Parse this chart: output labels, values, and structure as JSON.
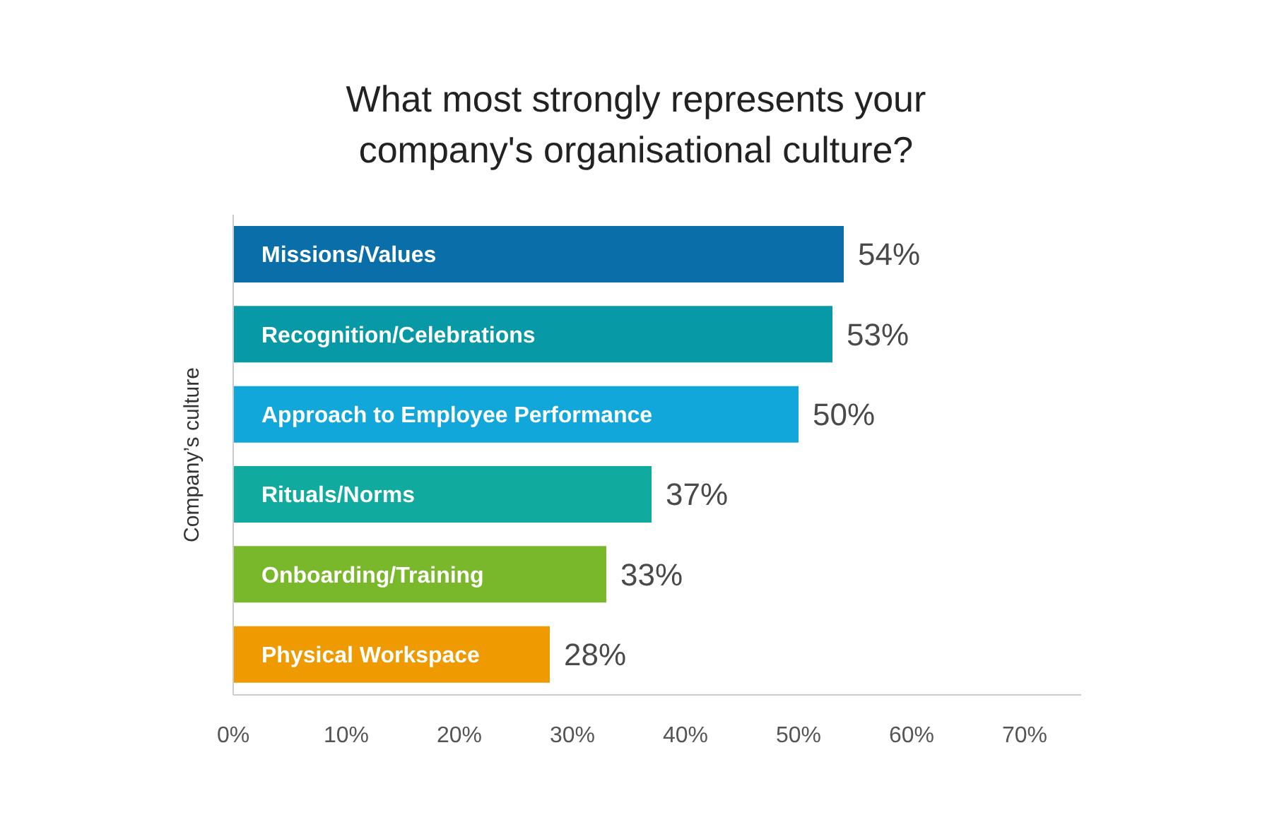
{
  "chart_data": {
    "type": "bar",
    "orientation": "horizontal",
    "title": "What most strongly represents your company's organisational culture?",
    "ylabel": "Company’s culture",
    "categories": [
      "Missions/Values",
      "Recognition/Celebrations",
      "Approach to Employee Performance",
      "Rituals/Norms",
      "Onboarding/Training",
      "Physical Workspace"
    ],
    "values": [
      54,
      53,
      50,
      37,
      33,
      28
    ],
    "colors": [
      "#0a6fa8",
      "#0899a6",
      "#11a7db",
      "#10ab9e",
      "#78b82a",
      "#ef9a00"
    ],
    "value_labels": [
      "54%",
      "53%",
      "50%",
      "37%",
      "33%",
      "28%"
    ],
    "xlim": [
      0,
      75
    ],
    "xticks": [
      {
        "value": 0,
        "label": "0%"
      },
      {
        "value": 10,
        "label": "10%"
      },
      {
        "value": 20,
        "label": "20%"
      },
      {
        "value": 30,
        "label": "30%"
      },
      {
        "value": 40,
        "label": "40%"
      },
      {
        "value": 50,
        "label": "50%"
      },
      {
        "value": 60,
        "label": "60%"
      },
      {
        "value": 70,
        "label": "70%"
      }
    ],
    "grid": false,
    "legend": false
  }
}
